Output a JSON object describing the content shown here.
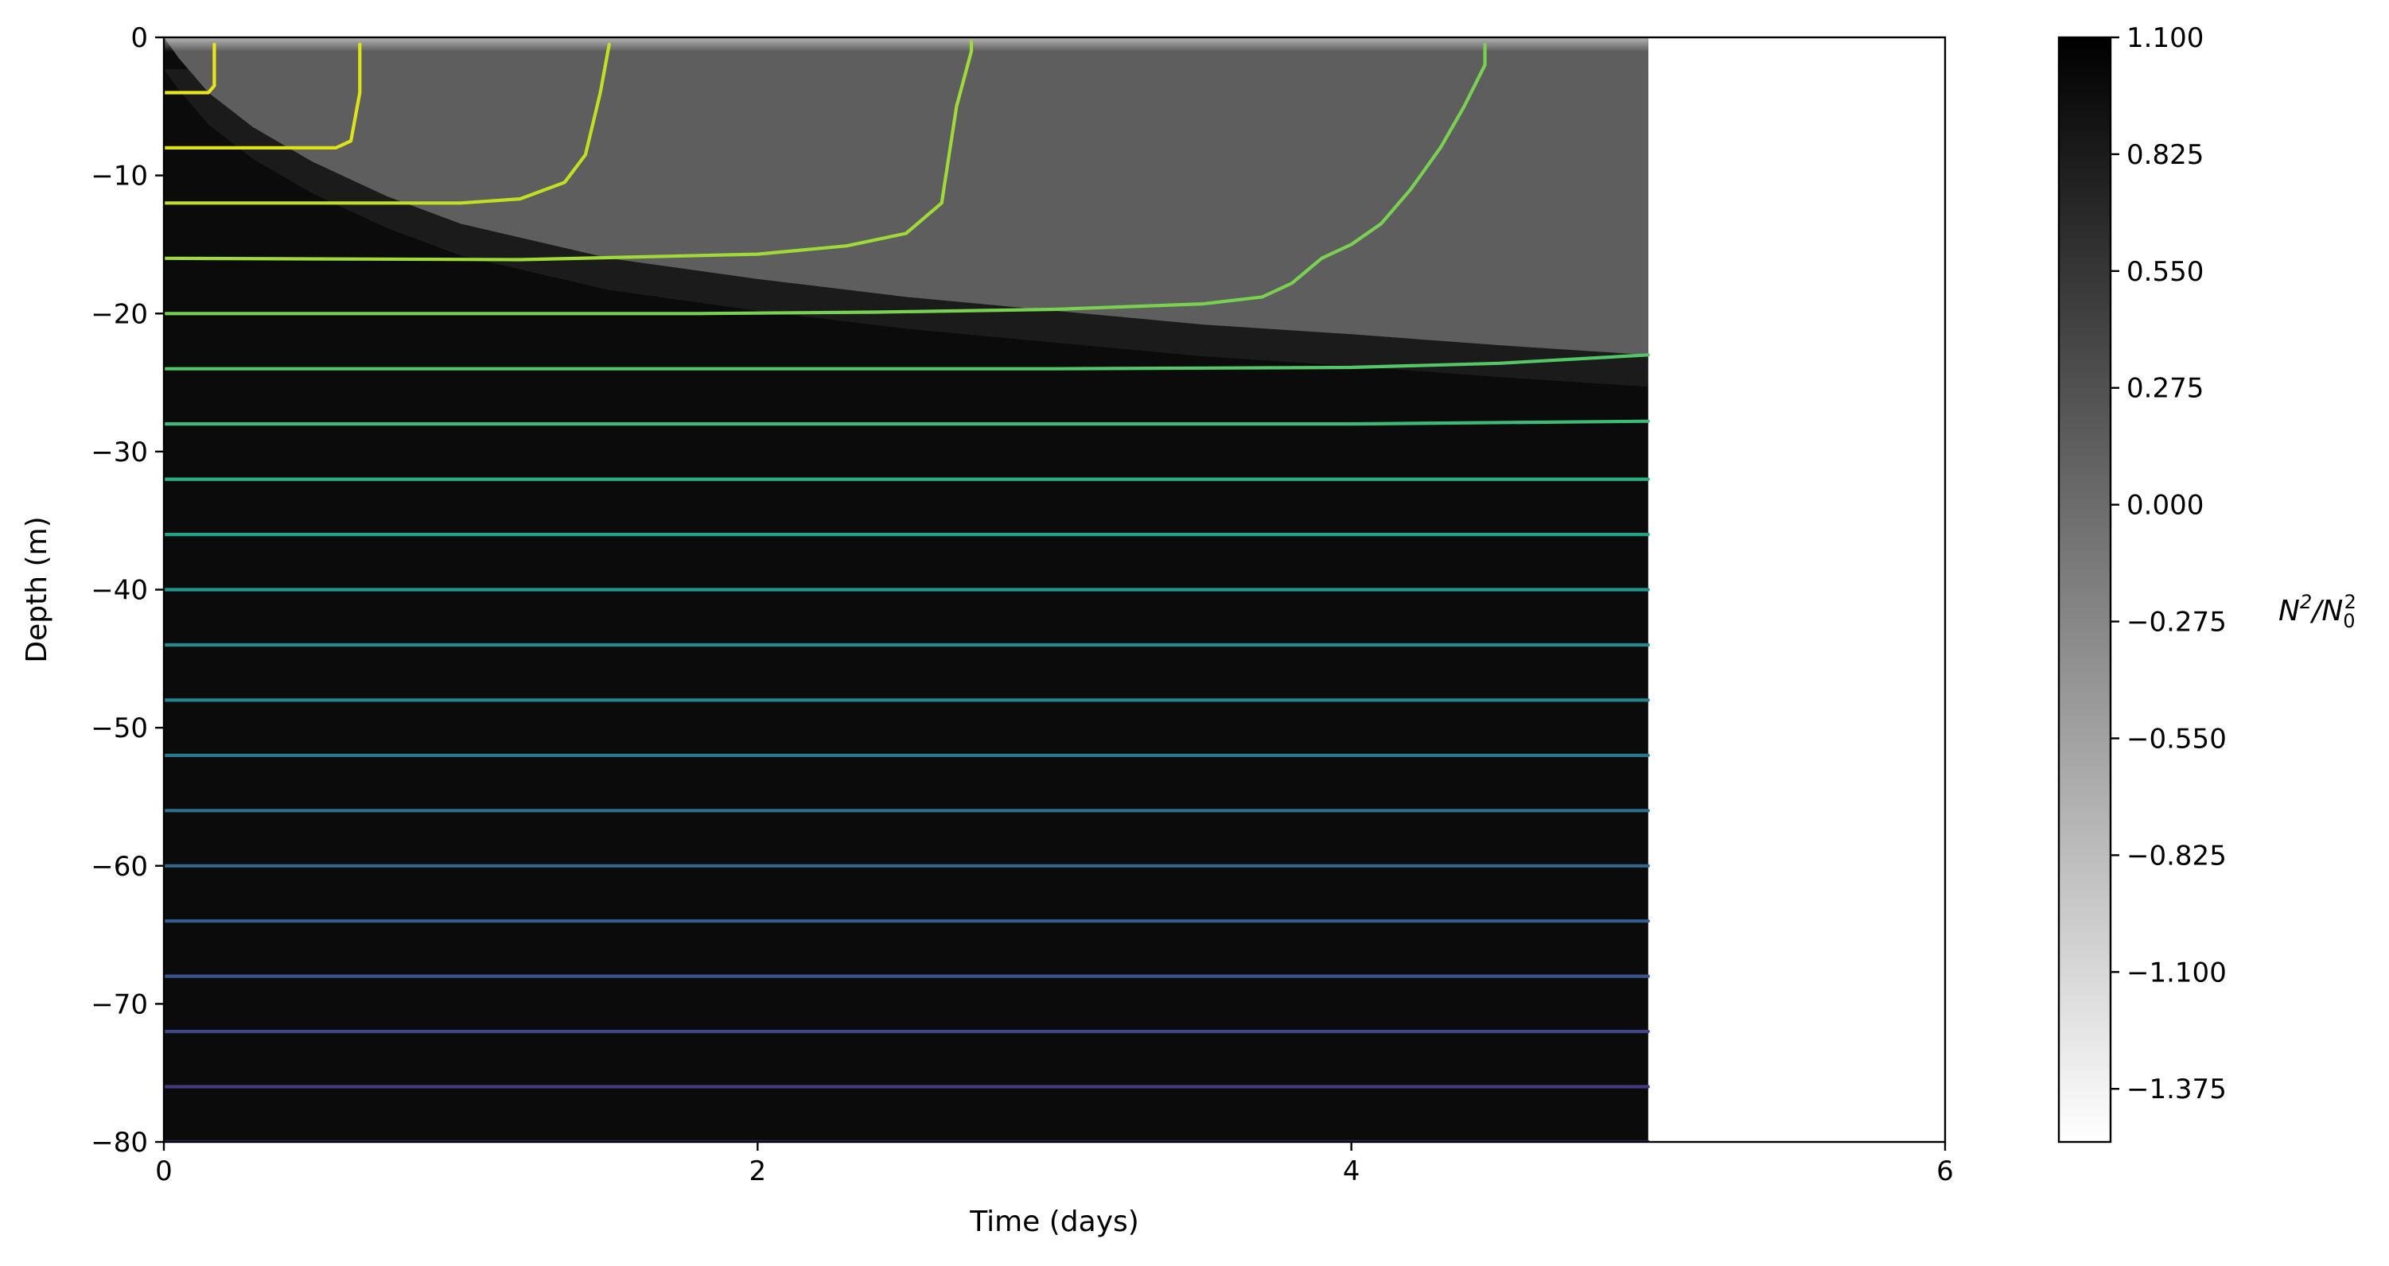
{
  "chart_data": {
    "type": "heatmap",
    "xlabel": "Time (days)",
    "ylabel": "Depth (m)",
    "xlim": [
      0,
      6
    ],
    "ylim": [
      -80,
      0
    ],
    "xticks": [
      0,
      2,
      4,
      6
    ],
    "yticks": [
      0,
      -10,
      -20,
      -30,
      -40,
      -50,
      -60,
      -70,
      -80
    ],
    "data_extent_x": [
      0,
      5
    ],
    "grid": false,
    "heatmap": {
      "colormap": "gray_r",
      "description": "Stratification field: near-uniform dark (N^2/N0^2 ≈ 1.1) below a deepening mixed layer that is lighter gray (≈ 0) near the surface.",
      "mixed_layer_base": {
        "time": [
          0.0,
          0.05,
          0.15,
          0.3,
          0.5,
          0.75,
          1.0,
          1.5,
          2.0,
          2.5,
          3.0,
          3.5,
          4.0,
          4.5,
          5.0
        ],
        "depth": [
          0,
          -1.5,
          -4,
          -6.5,
          -9,
          -11.5,
          -13.5,
          -16,
          -17.5,
          -18.8,
          -19.8,
          -20.8,
          -21.5,
          -22.3,
          -23
        ]
      },
      "surface_band_depth": -0.8
    },
    "colorbar": {
      "label": "N²/N₀²",
      "label_base": "N",
      "label_sup": "2",
      "label_sub": "0",
      "ticks": [
        "1.100",
        "0.825",
        "0.550",
        "0.275",
        "0.000",
        "−0.275",
        "−0.550",
        "−0.825",
        "−1.100",
        "−1.375"
      ],
      "tick_values": [
        1.1,
        0.825,
        0.55,
        0.275,
        0.0,
        -0.275,
        -0.55,
        -0.825,
        -1.1,
        -1.375
      ],
      "range": [
        -1.5,
        1.1
      ]
    },
    "contours": {
      "colormap": "viridis",
      "description": "Isopycnal contours, initially flat at 4 m spacing; the upper ones bend up to the surface as the mixed layer deepens.",
      "series": [
        {
          "level": 1,
          "color": "#e9e51a",
          "points": [
            [
              0,
              -4
            ],
            [
              0.15,
              -4
            ],
            [
              0.17,
              -3.5
            ],
            [
              0.17,
              -0.5
            ]
          ]
        },
        {
          "level": 2,
          "color": "#dde318",
          "points": [
            [
              0,
              -8
            ],
            [
              0.58,
              -8
            ],
            [
              0.63,
              -7.5
            ],
            [
              0.66,
              -4
            ],
            [
              0.66,
              -0.5
            ]
          ]
        },
        {
          "level": 3,
          "color": "#c2df23",
          "points": [
            [
              0,
              -12
            ],
            [
              1.0,
              -12
            ],
            [
              1.2,
              -11.7
            ],
            [
              1.35,
              -10.5
            ],
            [
              1.42,
              -8.5
            ],
            [
              1.47,
              -4
            ],
            [
              1.5,
              -0.5
            ]
          ]
        },
        {
          "level": 4,
          "color": "#a0da39",
          "points": [
            [
              0,
              -16
            ],
            [
              1.2,
              -16.1
            ],
            [
              2.0,
              -15.7
            ],
            [
              2.3,
              -15.1
            ],
            [
              2.5,
              -14.2
            ],
            [
              2.62,
              -12
            ],
            [
              2.67,
              -5
            ],
            [
              2.72,
              -1
            ],
            [
              2.72,
              -0.3
            ]
          ]
        },
        {
          "level": 5,
          "color": "#7ad151",
          "points": [
            [
              0,
              -20
            ],
            [
              1.8,
              -20
            ],
            [
              2.4,
              -19.9
            ],
            [
              3.0,
              -19.7
            ],
            [
              3.5,
              -19.3
            ],
            [
              3.7,
              -18.8
            ],
            [
              3.8,
              -17.8
            ],
            [
              3.9,
              -16
            ],
            [
              4.0,
              -15
            ],
            [
              4.1,
              -13.5
            ],
            [
              4.2,
              -11
            ],
            [
              4.3,
              -8
            ],
            [
              4.38,
              -5
            ],
            [
              4.45,
              -2
            ],
            [
              4.45,
              -0.5
            ]
          ]
        },
        {
          "level": 6,
          "color": "#55c667",
          "points": [
            [
              0,
              -24
            ],
            [
              3.0,
              -24
            ],
            [
              4.0,
              -23.9
            ],
            [
              4.5,
              -23.6
            ],
            [
              5.0,
              -23
            ]
          ]
        },
        {
          "level": 7,
          "color": "#3bbb75",
          "points": [
            [
              0,
              -28
            ],
            [
              4.0,
              -28
            ],
            [
              5.0,
              -27.8
            ]
          ]
        },
        {
          "level": 8,
          "color": "#2ab07f",
          "points": [
            [
              0,
              -32
            ],
            [
              5.0,
              -32
            ]
          ]
        },
        {
          "level": 9,
          "color": "#20a486",
          "points": [
            [
              0,
              -36
            ],
            [
              5.0,
              -36
            ]
          ]
        },
        {
          "level": 10,
          "color": "#1f988b",
          "points": [
            [
              0,
              -40
            ],
            [
              5.0,
              -40
            ]
          ]
        },
        {
          "level": 11,
          "color": "#228c8d",
          "points": [
            [
              0,
              -44
            ],
            [
              5.0,
              -44
            ]
          ]
        },
        {
          "level": 12,
          "color": "#25838e",
          "points": [
            [
              0,
              -48
            ],
            [
              5.0,
              -48
            ]
          ]
        },
        {
          "level": 13,
          "color": "#29798e",
          "points": [
            [
              0,
              -52
            ],
            [
              5.0,
              -52
            ]
          ]
        },
        {
          "level": 14,
          "color": "#2d708e",
          "points": [
            [
              0,
              -56
            ],
            [
              5.0,
              -56
            ]
          ]
        },
        {
          "level": 15,
          "color": "#31668e",
          "points": [
            [
              0,
              -60
            ],
            [
              5.0,
              -60
            ]
          ]
        },
        {
          "level": 16,
          "color": "#355f8d",
          "points": [
            [
              0,
              -64
            ],
            [
              5.0,
              -64
            ]
          ]
        },
        {
          "level": 17,
          "color": "#3a548c",
          "points": [
            [
              0,
              -68
            ],
            [
              5.0,
              -68
            ]
          ]
        },
        {
          "level": 18,
          "color": "#3f4889",
          "points": [
            [
              0,
              -72
            ],
            [
              5.0,
              -72
            ]
          ]
        },
        {
          "level": 19,
          "color": "#443983",
          "points": [
            [
              0,
              -76
            ],
            [
              5.0,
              -76
            ]
          ]
        },
        {
          "level": 20,
          "color": "#472c7a",
          "points": [
            [
              0,
              -80
            ],
            [
              5.0,
              -80
            ]
          ]
        }
      ]
    }
  }
}
